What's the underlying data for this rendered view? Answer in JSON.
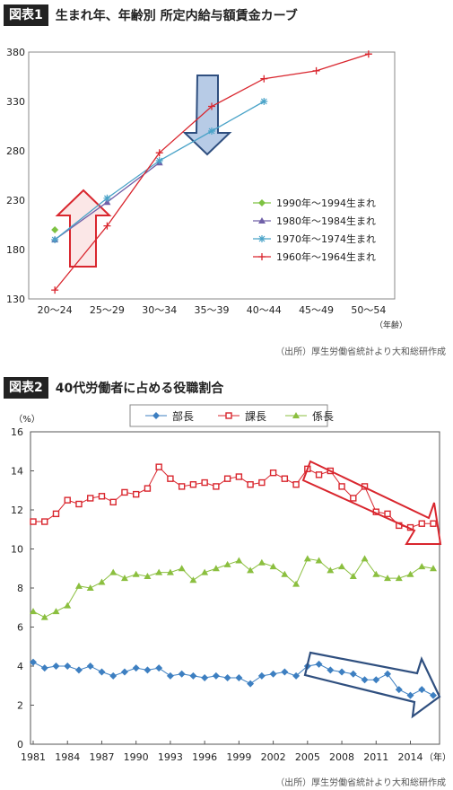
{
  "chart1": {
    "badge": "図表1",
    "title": "生まれ年、年齢別 所定内給与額賃金カーブ",
    "source": "（出所）厚生労働省統計より大和総研作成",
    "unit_label": "（年齢）",
    "chart_data": {
      "type": "line",
      "categories": [
        "20〜24",
        "25〜29",
        "30〜34",
        "35〜39",
        "40〜44",
        "45〜49",
        "50〜54"
      ],
      "ylim": [
        130,
        380
      ],
      "yticks": [
        130,
        180,
        230,
        280,
        330,
        380
      ],
      "legend_position": "right",
      "series": [
        {
          "name": "1990年〜1994生まれ",
          "color": "#7dc242",
          "marker": "diamond",
          "values": [
            200,
            null,
            null,
            null,
            null,
            null,
            null
          ]
        },
        {
          "name": "1980年〜1984生まれ",
          "color": "#7060a8",
          "marker": "triangle",
          "values": [
            190,
            228,
            268,
            null,
            null,
            null,
            null
          ]
        },
        {
          "name": "1970年〜1974生まれ",
          "color": "#4aa3c8",
          "marker": "star",
          "values": [
            190,
            232,
            270,
            300,
            330,
            null,
            null
          ]
        },
        {
          "name": "1960年〜1964生まれ",
          "color": "#d9262e",
          "marker": "plus",
          "values": [
            139,
            204,
            278,
            325,
            353,
            361,
            378
          ]
        }
      ]
    }
  },
  "chart2": {
    "badge": "図表2",
    "title": "40代労働者に占める役職割合",
    "source": "（出所）厚生労働省統計より大和総研作成",
    "y_unit": "（%）",
    "x_unit": "（年）",
    "chart_data": {
      "type": "line",
      "x": [
        1981,
        1982,
        1983,
        1984,
        1985,
        1986,
        1987,
        1988,
        1989,
        1990,
        1991,
        1992,
        1993,
        1994,
        1995,
        1996,
        1997,
        1998,
        1999,
        2000,
        2001,
        2002,
        2003,
        2004,
        2005,
        2006,
        2007,
        2008,
        2009,
        2010,
        2011,
        2012,
        2013,
        2014,
        2015,
        2016
      ],
      "xticks": [
        1981,
        1984,
        1987,
        1990,
        1993,
        1996,
        1999,
        2002,
        2005,
        2008,
        2011,
        2014
      ],
      "ylim": [
        0,
        16
      ],
      "yticks": [
        0,
        2,
        4,
        6,
        8,
        10,
        12,
        14,
        16
      ],
      "legend_position": "top",
      "series": [
        {
          "name": "部長",
          "color": "#3d7fc1",
          "marker": "diamond",
          "values": [
            4.2,
            3.9,
            4.0,
            4.0,
            3.8,
            4.0,
            3.7,
            3.5,
            3.7,
            3.9,
            3.8,
            3.9,
            3.5,
            3.6,
            3.5,
            3.4,
            3.5,
            3.4,
            3.4,
            3.1,
            3.5,
            3.6,
            3.7,
            3.5,
            4.0,
            4.1,
            3.8,
            3.7,
            3.6,
            3.3,
            3.3,
            3.6,
            2.8,
            2.5,
            2.8,
            2.5
          ]
        },
        {
          "name": "課長",
          "color": "#d9262e",
          "marker": "square",
          "values": [
            11.4,
            11.4,
            11.8,
            12.5,
            12.3,
            12.6,
            12.7,
            12.4,
            12.9,
            12.8,
            13.1,
            14.2,
            13.6,
            13.2,
            13.3,
            13.4,
            13.2,
            13.6,
            13.7,
            13.3,
            13.4,
            13.9,
            13.6,
            13.3,
            14.1,
            13.8,
            14.0,
            13.2,
            12.6,
            13.2,
            11.9,
            11.8,
            11.2,
            11.1,
            11.3,
            11.3
          ]
        },
        {
          "name": "係長",
          "color": "#8bbf3f",
          "marker": "triangle",
          "values": [
            6.8,
            6.5,
            6.8,
            7.1,
            8.1,
            8.0,
            8.3,
            8.8,
            8.5,
            8.7,
            8.6,
            8.8,
            8.8,
            9.0,
            8.4,
            8.8,
            9.0,
            9.2,
            9.4,
            8.9,
            9.3,
            9.1,
            8.7,
            8.2,
            9.5,
            9.4,
            8.9,
            9.1,
            8.6,
            9.5,
            8.7,
            8.5,
            8.5,
            8.7,
            9.1,
            9.0
          ]
        }
      ]
    }
  }
}
